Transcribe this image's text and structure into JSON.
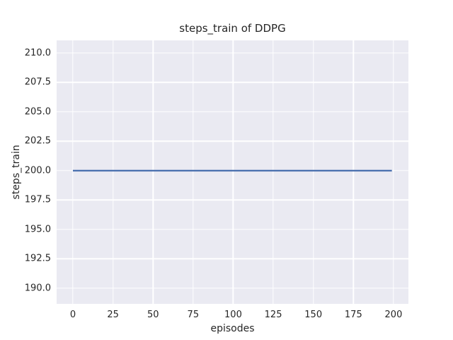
{
  "chart_data": {
    "type": "line",
    "title": "steps_train of DDPG",
    "xlabel": "episodes",
    "ylabel": "steps_train",
    "series": [
      {
        "name": "steps_train",
        "color": "#4C72B0",
        "x": [
          0,
          199
        ],
        "y": [
          200,
          200
        ]
      }
    ],
    "xticks": [
      0,
      25,
      50,
      75,
      100,
      125,
      150,
      175,
      200
    ],
    "xtick_labels": [
      "0",
      "25",
      "50",
      "75",
      "100",
      "125",
      "150",
      "175",
      "200"
    ],
    "yticks": [
      190.0,
      192.5,
      195.0,
      197.5,
      200.0,
      202.5,
      205.0,
      207.5,
      210.0
    ],
    "ytick_labels": [
      "190.0",
      "192.5",
      "195.0",
      "197.5",
      "200.0",
      "202.5",
      "205.0",
      "207.5",
      "210.0"
    ],
    "xlim": [
      -10.15,
      209.3
    ],
    "ylim": [
      188.67,
      211.08
    ],
    "grid": true,
    "legend": false,
    "plot_background": "#EAEAF2",
    "grid_color": "#FFFFFF",
    "figure_background": "#FFFFFF",
    "text_color": "#262626",
    "line_width": 2.4
  }
}
